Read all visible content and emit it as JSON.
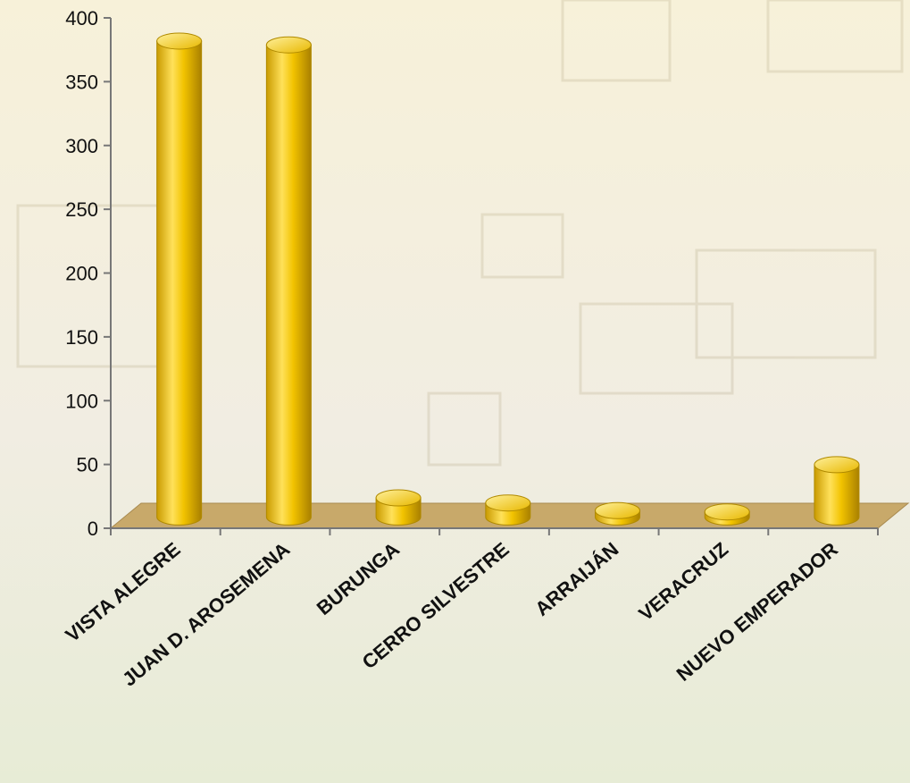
{
  "chart_data": {
    "type": "bar",
    "style": "3d-cylinder",
    "categories": [
      "VISTA ALEGRE",
      "JUAN D. AROSEMENA",
      "BURUNGA",
      "CERRO SILVESTRE",
      "ARRAIJÁN",
      "VERACRUZ",
      "NUEVO EMPERADOR"
    ],
    "values": [
      373,
      370,
      15,
      11,
      5,
      4,
      41
    ],
    "ylim": [
      0,
      400
    ],
    "yticks": [
      0,
      50,
      100,
      150,
      200,
      250,
      300,
      350,
      400
    ],
    "grid": false,
    "legend": "none",
    "title": "",
    "xlabel": "",
    "ylabel": ""
  },
  "colors": {
    "bar": "#f2c300",
    "bar_highlight": "#ffe87a",
    "bar_shadow": "#b08a00",
    "floor": "#c8a96a",
    "axis": "#777777"
  }
}
